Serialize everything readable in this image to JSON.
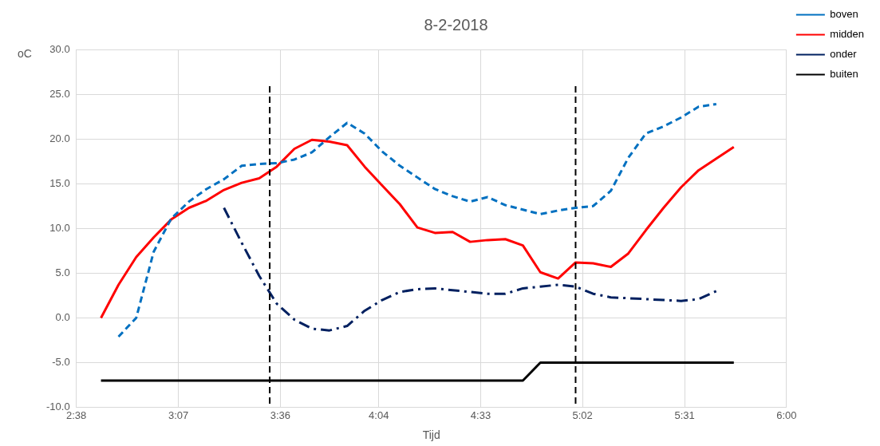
{
  "chart_data": {
    "type": "line",
    "title": "8-2-2018",
    "xlabel": "Tijd",
    "ylabel": "oC",
    "x": [
      2.75,
      2.833,
      2.917,
      3.0,
      3.083,
      3.167,
      3.25,
      3.333,
      3.417,
      3.5,
      3.583,
      3.667,
      3.75,
      3.833,
      3.917,
      4.0,
      4.083,
      4.167,
      4.25,
      4.333,
      4.417,
      4.5,
      4.583,
      4.667,
      4.75,
      4.833,
      4.917,
      5.0,
      5.083,
      5.167,
      5.25,
      5.333,
      5.417,
      5.5,
      5.583,
      5.667,
      5.75
    ],
    "series": [
      {
        "name": "boven",
        "color": "#0070c0",
        "line_style": "dashed",
        "values": [
          null,
          -2.1,
          0.0,
          7.4,
          11.1,
          13.0,
          14.4,
          15.5,
          17.0,
          17.2,
          17.3,
          17.7,
          18.5,
          20.2,
          21.8,
          20.6,
          18.6,
          17.0,
          15.7,
          14.4,
          13.6,
          13.0,
          13.5,
          12.6,
          12.1,
          11.6,
          12.0,
          12.3,
          12.5,
          14.2,
          17.9,
          20.6,
          21.4,
          22.4,
          23.6,
          23.9,
          null
        ]
      },
      {
        "name": "midden",
        "color": "#ff0000",
        "line_style": "solid",
        "values": [
          0.0,
          3.7,
          6.8,
          9.0,
          11.0,
          12.3,
          13.1,
          14.3,
          15.1,
          15.6,
          16.9,
          18.9,
          19.9,
          19.7,
          19.3,
          16.9,
          14.8,
          12.7,
          10.1,
          9.5,
          9.6,
          8.5,
          8.7,
          8.8,
          8.1,
          5.1,
          4.4,
          6.2,
          6.1,
          5.7,
          7.2,
          9.8,
          12.3,
          14.6,
          16.5,
          17.8,
          19.1
        ]
      },
      {
        "name": "onder",
        "color": "#002060",
        "line_style": "dashdot",
        "values": [
          null,
          null,
          null,
          null,
          null,
          null,
          null,
          12.3,
          8.4,
          4.7,
          1.6,
          -0.2,
          -1.2,
          -1.4,
          -0.9,
          0.8,
          2.0,
          2.9,
          3.2,
          3.3,
          3.1,
          2.9,
          2.7,
          2.7,
          3.3,
          3.5,
          3.7,
          3.5,
          2.7,
          2.3,
          2.2,
          2.1,
          2.0,
          1.9,
          2.1,
          3.0,
          null
        ]
      },
      {
        "name": "buiten",
        "color": "#000000",
        "line_style": "solid",
        "values": [
          -7,
          -7,
          -7,
          -7,
          -7,
          -7,
          -7,
          -7,
          -7,
          -7,
          -7,
          -7,
          -7,
          -7,
          -7,
          -7,
          -7,
          -7,
          -7,
          -7,
          -7,
          -7,
          -7,
          -7,
          -7,
          -5,
          -5,
          -5,
          -5,
          -5,
          -5,
          -5,
          -5,
          -5,
          -5,
          -5,
          -5
        ]
      }
    ],
    "xlim": [
      2.633,
      6.0
    ],
    "xticks": [
      {
        "value": 2.633,
        "label": "2:38"
      },
      {
        "value": 3.117,
        "label": "3:07"
      },
      {
        "value": 3.6,
        "label": "3:36"
      },
      {
        "value": 4.067,
        "label": "4:04"
      },
      {
        "value": 4.55,
        "label": "4:33"
      },
      {
        "value": 5.033,
        "label": "5:02"
      },
      {
        "value": 5.517,
        "label": "5:31"
      },
      {
        "value": 6.0,
        "label": "6:00"
      }
    ],
    "ylim": [
      -10,
      30
    ],
    "yticks": [
      {
        "value": -10,
        "label": "-10.0"
      },
      {
        "value": -5,
        "label": "-5.0"
      },
      {
        "value": 0,
        "label": "0.0"
      },
      {
        "value": 5,
        "label": "5.0"
      },
      {
        "value": 10,
        "label": "10.0"
      },
      {
        "value": 15,
        "label": "15.0"
      },
      {
        "value": 20,
        "label": "20.0"
      },
      {
        "value": 25,
        "label": "25.0"
      },
      {
        "value": 30,
        "label": "30.0"
      }
    ],
    "ref_lines": [
      {
        "axis": "x",
        "value": 3.55,
        "color": "#000000",
        "line_style": "dashed"
      },
      {
        "axis": "x",
        "value": 5.0,
        "color": "#000000",
        "line_style": "dashed"
      }
    ],
    "grid": true,
    "legend": "right",
    "marker": "none"
  }
}
